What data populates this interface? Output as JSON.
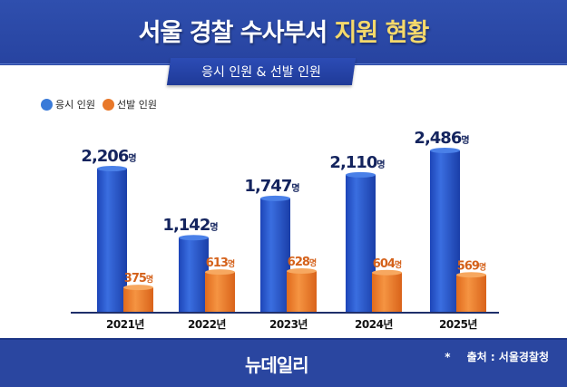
{
  "header": {
    "title_main": "서울 경찰 수사부서",
    "title_highlight": "지원 현황",
    "subtitle": "응시 인원 & 선발 인원"
  },
  "footer": {
    "logo": "뉴데일리",
    "source_star": "*",
    "source": "출처 : 서울경찰청"
  },
  "colors": {
    "applicants": "#2f5fd0",
    "selected": "#e8782a",
    "header": "#2a46a0",
    "highlight": "#f5d96b"
  },
  "chart_data": {
    "type": "bar",
    "categories": [
      "2021년",
      "2022년",
      "2023년",
      "2024년",
      "2025년"
    ],
    "unit": "명",
    "series": [
      {
        "name": "응시 인원",
        "values": [
          2206,
          1142,
          1747,
          2110,
          2486
        ],
        "labels": [
          "2,206",
          "1,142",
          "1,747",
          "2,110",
          "2,486"
        ]
      },
      {
        "name": "선발 인원",
        "values": [
          375,
          613,
          628,
          604,
          569
        ],
        "labels": [
          "375",
          "613",
          "628",
          "604",
          "569"
        ]
      }
    ],
    "legend": "top-left",
    "grid": false
  }
}
